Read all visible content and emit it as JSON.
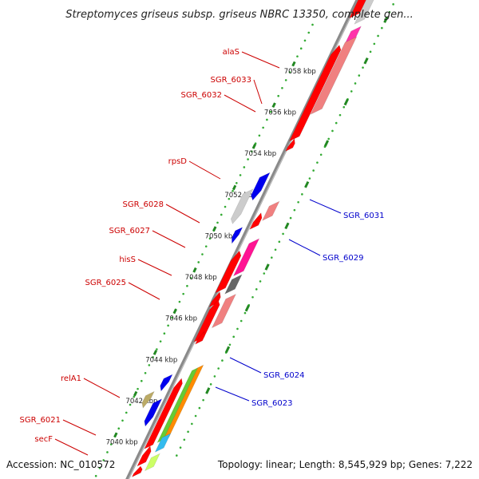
{
  "title": "Streptomyces griseus subsp. griseus NBRC 13350, complete gen...",
  "accession": "Accession: NC_010572",
  "summary": "Topology: linear; Length: 8,545,929 bp; Genes: 7,222",
  "colors": {
    "forward": "#ff0000",
    "reverse": "#0000ff",
    "label_forward": "#cc0000",
    "label_reverse": "#0000cc",
    "backbone": "#888888",
    "tick_major": "#228822",
    "tick_minor": "#33aa33"
  },
  "ruler_ticks": [
    {
      "label": "7058 kbp",
      "kbp": 7058
    },
    {
      "label": "7056 kbp",
      "kbp": 7056
    },
    {
      "label": "7054 kbp",
      "kbp": 7054
    },
    {
      "label": "7052 kbp",
      "kbp": 7052
    },
    {
      "label": "7050 kbp",
      "kbp": 7050
    },
    {
      "label": "7048 kbp",
      "kbp": 7048
    },
    {
      "label": "7046 kbp",
      "kbp": 7046
    },
    {
      "label": "7044 kbp",
      "kbp": 7044
    },
    {
      "label": "7042 kbp",
      "kbp": 7042
    },
    {
      "label": "7040 kbp",
      "kbp": 7040
    }
  ],
  "forward_labels": [
    "alaS",
    "SGR_6033",
    "SGR_6032",
    "rpsD",
    "SGR_6028",
    "SGR_6027",
    "hisS",
    "SGR_6025",
    "relA1",
    "SGR_6021",
    "secF"
  ],
  "reverse_labels": [
    "SGR_6031",
    "SGR_6029",
    "SGR_6024",
    "SGR_6023"
  ]
}
